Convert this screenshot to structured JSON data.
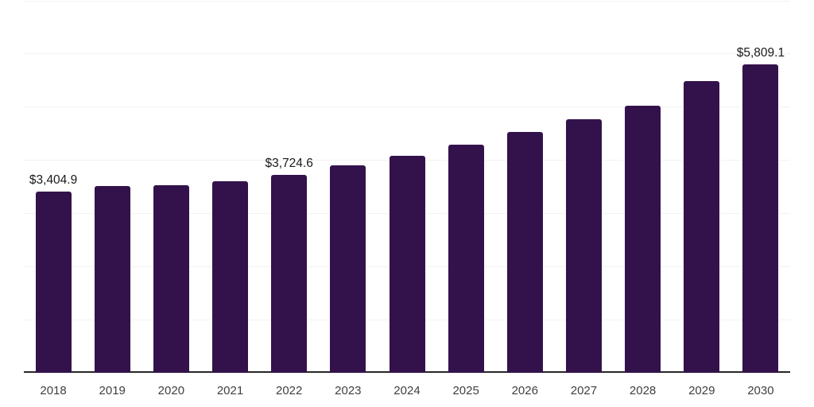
{
  "chart_data": {
    "type": "bar",
    "title": "",
    "xlabel": "",
    "ylabel": "",
    "categories": [
      "2018",
      "2019",
      "2020",
      "2021",
      "2022",
      "2023",
      "2024",
      "2025",
      "2026",
      "2027",
      "2028",
      "2029",
      "2030"
    ],
    "values": [
      3404.9,
      3517,
      3526,
      3605,
      3724.6,
      3903,
      4077,
      4300,
      4535,
      4774,
      5032,
      5495,
      5809.1
    ],
    "value_labels": [
      {
        "index": 0,
        "text": "$3,404.9"
      },
      {
        "index": 4,
        "text": "$3,724.6"
      },
      {
        "index": 12,
        "text": "$5,809.1"
      }
    ],
    "ylim": [
      0,
      7000
    ],
    "gridline_step": 1000,
    "grid": true,
    "legend": false,
    "colors": {
      "bar": "#33124B",
      "gridline": "#F2F2F2",
      "axis_line": "#262626",
      "tick_label": "#404040",
      "value_label": "#1A1A1A",
      "background": "#FFFFFF"
    }
  }
}
